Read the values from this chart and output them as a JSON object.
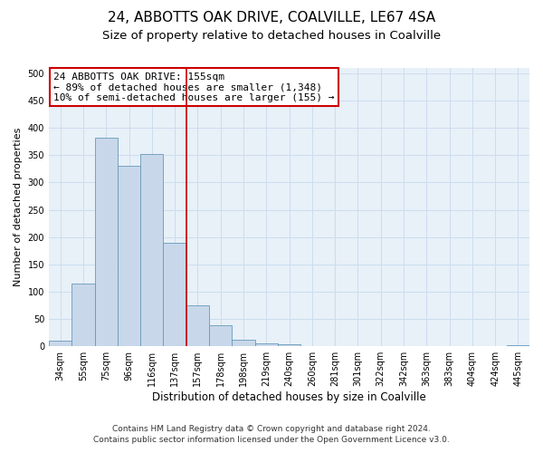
{
  "title": "24, ABBOTTS OAK DRIVE, COALVILLE, LE67 4SA",
  "subtitle": "Size of property relative to detached houses in Coalville",
  "xlabel": "Distribution of detached houses by size in Coalville",
  "ylabel": "Number of detached properties",
  "bins": [
    "34sqm",
    "55sqm",
    "75sqm",
    "96sqm",
    "116sqm",
    "137sqm",
    "157sqm",
    "178sqm",
    "198sqm",
    "219sqm",
    "240sqm",
    "260sqm",
    "281sqm",
    "301sqm",
    "322sqm",
    "342sqm",
    "363sqm",
    "383sqm",
    "404sqm",
    "424sqm",
    "445sqm"
  ],
  "values": [
    10,
    115,
    383,
    330,
    352,
    190,
    75,
    38,
    12,
    6,
    4,
    0,
    0,
    0,
    0,
    1,
    0,
    0,
    0,
    0,
    2
  ],
  "bar_color": "#c8d8ea",
  "bar_edge_color": "#6699bb",
  "vline_x_index": 6,
  "vline_color": "#cc0000",
  "annotation_line1": "24 ABBOTTS OAK DRIVE: 155sqm",
  "annotation_line2": "← 89% of detached houses are smaller (1,348)",
  "annotation_line3": "10% of semi-detached houses are larger (155) →",
  "annotation_box_color": "#ffffff",
  "annotation_box_edge_color": "#cc0000",
  "grid_color": "#ccddee",
  "bg_color": "#e8f0f8",
  "footer_line1": "Contains HM Land Registry data © Crown copyright and database right 2024.",
  "footer_line2": "Contains public sector information licensed under the Open Government Licence v3.0.",
  "ylim": [
    0,
    510
  ],
  "title_fontsize": 11,
  "subtitle_fontsize": 9.5,
  "annotation_fontsize": 8,
  "tick_fontsize": 7,
  "ylabel_fontsize": 8,
  "xlabel_fontsize": 8.5,
  "footer_fontsize": 6.5
}
